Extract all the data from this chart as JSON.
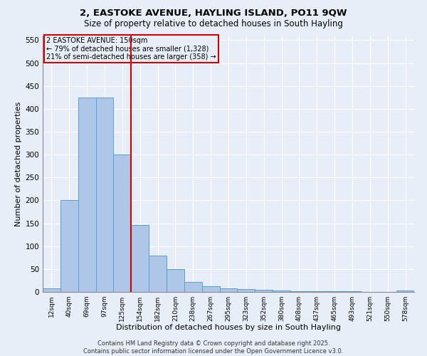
{
  "title_line1": "2, EASTOKE AVENUE, HAYLING ISLAND, PO11 9QW",
  "title_line2": "Size of property relative to detached houses in South Hayling",
  "xlabel": "Distribution of detached houses by size in South Hayling",
  "ylabel": "Number of detached properties",
  "categories": [
    "12sqm",
    "40sqm",
    "69sqm",
    "97sqm",
    "125sqm",
    "154sqm",
    "182sqm",
    "210sqm",
    "238sqm",
    "267sqm",
    "295sqm",
    "323sqm",
    "352sqm",
    "380sqm",
    "408sqm",
    "437sqm",
    "465sqm",
    "493sqm",
    "521sqm",
    "550sqm",
    "578sqm"
  ],
  "values": [
    8,
    200,
    425,
    425,
    300,
    147,
    80,
    50,
    22,
    12,
    8,
    7,
    5,
    3,
    2,
    1,
    1,
    1,
    0,
    0,
    3
  ],
  "bar_color": "#aec6e8",
  "bar_edge_color": "#5a9fd4",
  "ylim": [
    0,
    560
  ],
  "yticks": [
    0,
    50,
    100,
    150,
    200,
    250,
    300,
    350,
    400,
    450,
    500,
    550
  ],
  "vline_x_index": 5,
  "vline_color": "#cc0000",
  "annotation_title": "2 EASTOKE AVENUE: 150sqm",
  "annotation_line1": "← 79% of detached houses are smaller (1,328)",
  "annotation_line2": "21% of semi-detached houses are larger (358) →",
  "annotation_box_color": "#cc0000",
  "background_color": "#e8eef8",
  "footer_line1": "Contains HM Land Registry data © Crown copyright and database right 2025.",
  "footer_line2": "Contains public sector information licensed under the Open Government Licence v3.0.",
  "title_fontsize": 9.5,
  "subtitle_fontsize": 8.5,
  "xlabel_fontsize": 8,
  "ylabel_fontsize": 8
}
